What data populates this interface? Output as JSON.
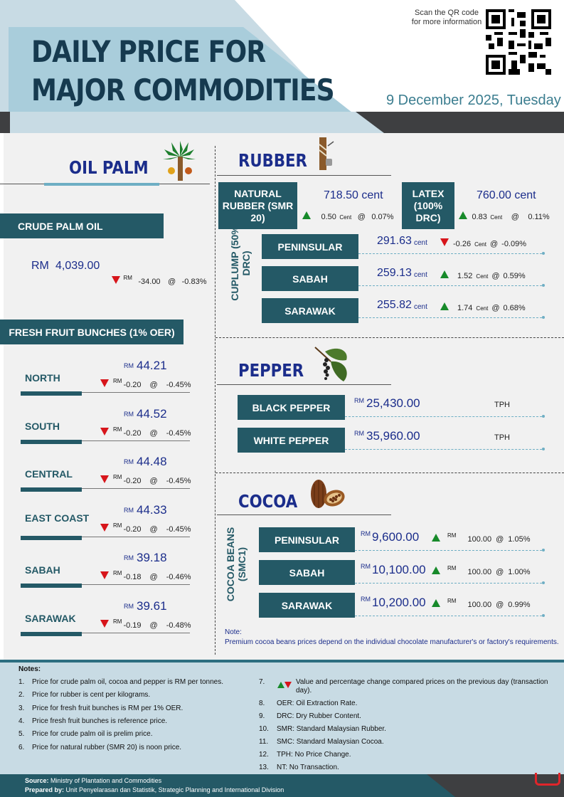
{
  "header": {
    "title_line1": "DAILY PRICE FOR",
    "title_line2": "MAJOR COMMODITIES",
    "qr_text": "Scan the QR code for more information",
    "date": "9 December 2025, Tuesday"
  },
  "oil_palm": {
    "title": "OIL PALM",
    "cpo": {
      "label": "CRUDE PALM OIL",
      "currency": "RM",
      "price": "4,039.00",
      "rm": "RM",
      "change": "-34.00",
      "at": "@",
      "pct": "-0.83%"
    },
    "ffb_label": "FRESH FRUIT BUNCHES (1% OER)",
    "ffb": [
      {
        "region": "NORTH",
        "rm": "RM",
        "price": "44.21",
        "change": "-0.20",
        "at": "@",
        "pct": "-0.45%"
      },
      {
        "region": "SOUTH",
        "rm": "RM",
        "price": "44.52",
        "change": "-0.20",
        "at": "@",
        "pct": "-0.45%"
      },
      {
        "region": "CENTRAL",
        "rm": "RM",
        "price": "44.48",
        "change": "-0.20",
        "at": "@",
        "pct": "-0.45%"
      },
      {
        "region": "EAST COAST",
        "rm": "RM",
        "price": "44.33",
        "change": "-0.20",
        "at": "@",
        "pct": "-0.45%"
      },
      {
        "region": "SABAH",
        "rm": "RM",
        "price": "39.18",
        "change": "-0.18",
        "at": "@",
        "pct": "-0.46%"
      },
      {
        "region": "SARAWAK",
        "rm": "RM",
        "price": "39.61",
        "change": "-0.19",
        "at": "@",
        "pct": "-0.48%"
      }
    ]
  },
  "rubber": {
    "title": "RUBBER",
    "natural": {
      "label": "NATURAL RUBBER (SMR 20)",
      "price": "718.50 cent",
      "change": "0.50",
      "unit": "Cent",
      "at": "@",
      "pct": "0.07%"
    },
    "latex": {
      "label": "LATEX (100% DRC)",
      "price": "760.00 cent",
      "change": "0.83",
      "unit": "Cent",
      "at": "@",
      "pct": "0.11%"
    },
    "cuplump_label": "CUPLUMP (50% DRC)",
    "cuplump": [
      {
        "region": "PENINSULAR",
        "price": "291.63",
        "unit_price": "cent",
        "change": "-0.26",
        "unit": "Cent",
        "at": "@",
        "pct": "-0.09%"
      },
      {
        "region": "SABAH",
        "price": "259.13",
        "unit_price": "cent",
        "change": "1.52",
        "unit": "Cent",
        "at": "@",
        "pct": "0.59%"
      },
      {
        "region": "SARAWAK",
        "price": "255.82",
        "unit_price": "cent",
        "change": "1.74",
        "unit": "Cent",
        "at": "@",
        "pct": "0.68%"
      }
    ]
  },
  "pepper": {
    "title": "PEPPER",
    "items": [
      {
        "label": "BLACK PEPPER",
        "rm": "RM",
        "price": "25,430.00",
        "status": "TPH"
      },
      {
        "label": "WHITE PEPPER",
        "rm": "RM",
        "price": "35,960.00",
        "status": "TPH"
      }
    ]
  },
  "cocoa": {
    "title": "COCOA",
    "beans_label": "COCOA BEANS (SMC1)",
    "items": [
      {
        "region": "PENINSULAR",
        "rm": "RM",
        "price": "9,600.00",
        "rm2": "RM",
        "change": "100.00",
        "at": "@",
        "pct": "1.05%"
      },
      {
        "region": "SABAH",
        "rm": "RM",
        "price": "10,100.00",
        "rm2": "RM",
        "change": "100.00",
        "at": "@",
        "pct": "1.00%"
      },
      {
        "region": "SARAWAK",
        "rm": "RM",
        "price": "10,200.00",
        "rm2": "RM",
        "change": "100.00",
        "at": "@",
        "pct": "0.99%"
      }
    ],
    "note_title": "Note:",
    "note": "Premium cocoa beans prices depend on the individual chocolate manufacturer's or factory's requirements."
  },
  "notes": {
    "title": "Notes:",
    "left": [
      {
        "n": "1.",
        "t": "Price for crude palm oil, cocoa and pepper is RM per tonnes."
      },
      {
        "n": "2.",
        "t": "Price for rubber is cent per kilograms."
      },
      {
        "n": "3.",
        "t": "Price for fresh fruit bunches is RM per 1% OER."
      },
      {
        "n": "4.",
        "t": "Price fresh fruit bunches is reference price."
      },
      {
        "n": "5.",
        "t": "Price for crude palm oil is prelim price."
      },
      {
        "n": "6.",
        "t": "Price for natural rubber (SMR 20) is noon price."
      }
    ],
    "right": [
      {
        "n": "7.",
        "t": "Value and percentage change compared prices on the previous day (transaction day)."
      },
      {
        "n": "8.",
        "t": "OER: Oil Extraction Rate."
      },
      {
        "n": "9.",
        "t": "DRC: Dry Rubber Content."
      },
      {
        "n": "10.",
        "t": "SMR: Standard Malaysian Rubber."
      },
      {
        "n": "11.",
        "t": "SMC: Standard Malaysian Cocoa."
      },
      {
        "n": "12.",
        "t": "TPH: No Price Change."
      },
      {
        "n": "13.",
        "t": "NT: No Transaction."
      }
    ]
  },
  "footer": {
    "source_label": "Source:",
    "source": "Ministry of Plantation and Commodities",
    "prepared_label": "Prepared by:",
    "prepared": "Unit Penyelarasan dan Statistik, Strategic Planning and International Division"
  },
  "colors": {
    "navy": "#1b2d8b",
    "teal": "#245966",
    "up": "#178a2a",
    "down": "#d7151b"
  }
}
